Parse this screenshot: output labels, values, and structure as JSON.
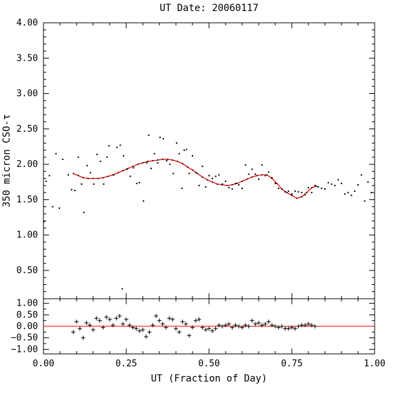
{
  "chart_data": [
    {
      "type": "scatter",
      "title": "UT Date: 20060117",
      "xlabel": "",
      "ylabel": "350 micron CSO-τ",
      "xlim": [
        0,
        1
      ],
      "ylim": [
        0.1,
        4.0
      ],
      "y_ticks": [
        "0.50",
        "1.00",
        "1.50",
        "2.00",
        "2.50",
        "3.00",
        "3.50",
        "4.00"
      ],
      "grid": false,
      "series": [
        {
          "marker": "dot",
          "color": "#000000",
          "x": [
            0.002,
            0.008,
            0.018,
            0.028,
            0.038,
            0.048,
            0.058,
            0.075,
            0.085,
            0.095,
            0.105,
            0.115,
            0.122,
            0.132,
            0.142,
            0.152,
            0.162,
            0.172,
            0.182,
            0.192,
            0.198,
            0.212,
            0.222,
            0.232,
            0.238,
            0.242,
            0.252,
            0.262,
            0.272,
            0.282,
            0.29,
            0.302,
            0.312,
            0.318,
            0.325,
            0.335,
            0.345,
            0.352,
            0.362,
            0.372,
            0.382,
            0.392,
            0.402,
            0.41,
            0.418,
            0.425,
            0.432,
            0.44,
            0.45,
            0.46,
            0.47,
            0.48,
            0.49,
            0.5,
            0.51,
            0.52,
            0.53,
            0.54,
            0.55,
            0.56,
            0.57,
            0.58,
            0.59,
            0.6,
            0.61,
            0.62,
            0.63,
            0.64,
            0.65,
            0.66,
            0.67,
            0.68,
            0.69,
            0.7,
            0.71,
            0.72,
            0.73,
            0.74,
            0.75,
            0.76,
            0.77,
            0.78,
            0.79,
            0.8,
            0.81,
            0.82,
            0.83,
            0.84,
            0.85,
            0.86,
            0.87,
            0.88,
            0.89,
            0.9,
            0.91,
            0.92,
            0.93,
            0.94,
            0.95,
            0.96,
            0.97,
            0.98,
            0.99
          ],
          "y": [
            1.19,
            1.76,
            1.84,
            1.4,
            2.15,
            1.38,
            2.07,
            1.85,
            1.64,
            1.63,
            2.1,
            1.72,
            1.32,
            1.98,
            1.88,
            1.72,
            2.14,
            2.04,
            1.72,
            2.1,
            2.26,
            1.85,
            2.24,
            2.27,
            0.24,
            2.12,
            1.93,
            1.83,
            1.95,
            1.73,
            1.74,
            1.48,
            2.02,
            2.41,
            1.94,
            2.15,
            2.02,
            2.38,
            2.36,
            2.05,
            2.0,
            1.87,
            2.3,
            2.15,
            1.66,
            2.2,
            2.21,
            1.87,
            2.12,
            1.88,
            1.7,
            1.97,
            1.68,
            1.84,
            1.8,
            1.83,
            1.85,
            1.72,
            1.76,
            1.67,
            1.65,
            1.73,
            1.71,
            1.66,
            1.99,
            1.86,
            1.93,
            1.86,
            1.79,
            1.99,
            1.84,
            1.89,
            1.81,
            1.73,
            1.66,
            1.65,
            1.61,
            1.62,
            1.58,
            1.62,
            1.61,
            1.6,
            1.57,
            1.67,
            1.6,
            1.7,
            1.68,
            1.66,
            1.65,
            1.74,
            1.72,
            1.7,
            1.78,
            1.73,
            1.58,
            1.6,
            1.56,
            1.62,
            1.71,
            1.85,
            1.48,
            1.75,
            1.6
          ]
        },
        {
          "marker": "line",
          "color": "#ff0000",
          "x": [
            0.09,
            0.105,
            0.12,
            0.135,
            0.15,
            0.165,
            0.18,
            0.195,
            0.21,
            0.225,
            0.24,
            0.255,
            0.27,
            0.285,
            0.3,
            0.315,
            0.33,
            0.345,
            0.36,
            0.375,
            0.39,
            0.405,
            0.42,
            0.435,
            0.45,
            0.465,
            0.48,
            0.495,
            0.51,
            0.525,
            0.54,
            0.555,
            0.57,
            0.585,
            0.6,
            0.615,
            0.63,
            0.645,
            0.66,
            0.675,
            0.69,
            0.705,
            0.72,
            0.735,
            0.75,
            0.765,
            0.78,
            0.795,
            0.81,
            0.825
          ],
          "y": [
            1.87,
            1.84,
            1.81,
            1.8,
            1.8,
            1.8,
            1.81,
            1.83,
            1.85,
            1.88,
            1.91,
            1.94,
            1.97,
            2.0,
            2.02,
            2.04,
            2.05,
            2.06,
            2.07,
            2.07,
            2.06,
            2.04,
            2.01,
            1.96,
            1.92,
            1.87,
            1.82,
            1.78,
            1.75,
            1.72,
            1.71,
            1.7,
            1.71,
            1.73,
            1.76,
            1.79,
            1.82,
            1.84,
            1.85,
            1.85,
            1.8,
            1.73,
            1.65,
            1.6,
            1.56,
            1.52,
            1.54,
            1.6,
            1.67,
            1.69
          ]
        }
      ]
    },
    {
      "type": "scatter",
      "xlabel": "UT (Fraction of Day)",
      "ylabel": "",
      "xlim": [
        0,
        1
      ],
      "ylim": [
        -1.2,
        1.2
      ],
      "x_ticks": [
        "0.00",
        "0.25",
        "0.50",
        "0.75",
        "1.00"
      ],
      "y_ticks": [
        "−1.00",
        "−0.50",
        "0.00",
        "0.50",
        "1.00"
      ],
      "reference_line": {
        "y": 0,
        "color": "#ff0000"
      },
      "series": [
        {
          "marker": "plus",
          "color": "#000000",
          "x": [
            0.09,
            0.1,
            0.11,
            0.12,
            0.13,
            0.14,
            0.15,
            0.16,
            0.17,
            0.18,
            0.19,
            0.2,
            0.21,
            0.22,
            0.23,
            0.24,
            0.25,
            0.26,
            0.27,
            0.28,
            0.29,
            0.3,
            0.31,
            0.32,
            0.33,
            0.34,
            0.35,
            0.36,
            0.37,
            0.38,
            0.39,
            0.4,
            0.41,
            0.42,
            0.43,
            0.44,
            0.45,
            0.46,
            0.47,
            0.48,
            0.49,
            0.5,
            0.51,
            0.52,
            0.53,
            0.54,
            0.55,
            0.56,
            0.57,
            0.58,
            0.59,
            0.6,
            0.61,
            0.62,
            0.63,
            0.64,
            0.65,
            0.66,
            0.67,
            0.68,
            0.69,
            0.7,
            0.71,
            0.72,
            0.73,
            0.74,
            0.75,
            0.76,
            0.77,
            0.78,
            0.79,
            0.8,
            0.81,
            0.82
          ],
          "y": [
            -0.25,
            0.2,
            -0.1,
            -0.5,
            0.15,
            0.05,
            -0.15,
            0.35,
            0.25,
            -0.05,
            0.4,
            0.3,
            0.05,
            0.35,
            0.45,
            0.1,
            0.3,
            0.05,
            -0.05,
            -0.1,
            -0.2,
            -0.15,
            -0.45,
            -0.25,
            0.05,
            0.45,
            0.25,
            0.1,
            -0.05,
            0.35,
            0.3,
            -0.1,
            -0.25,
            0.2,
            0.1,
            -0.4,
            -0.05,
            0.25,
            0.3,
            -0.05,
            -0.15,
            -0.1,
            -0.2,
            -0.1,
            0.05,
            0.0,
            0.05,
            0.1,
            -0.05,
            0.05,
            0.0,
            -0.05,
            0.05,
            0.0,
            0.25,
            0.1,
            0.15,
            0.05,
            0.1,
            0.2,
            0.05,
            0.0,
            -0.05,
            0.0,
            -0.1,
            -0.1,
            -0.05,
            -0.1,
            0.0,
            0.05,
            0.05,
            0.1,
            0.05,
            0.0
          ]
        }
      ]
    }
  ]
}
